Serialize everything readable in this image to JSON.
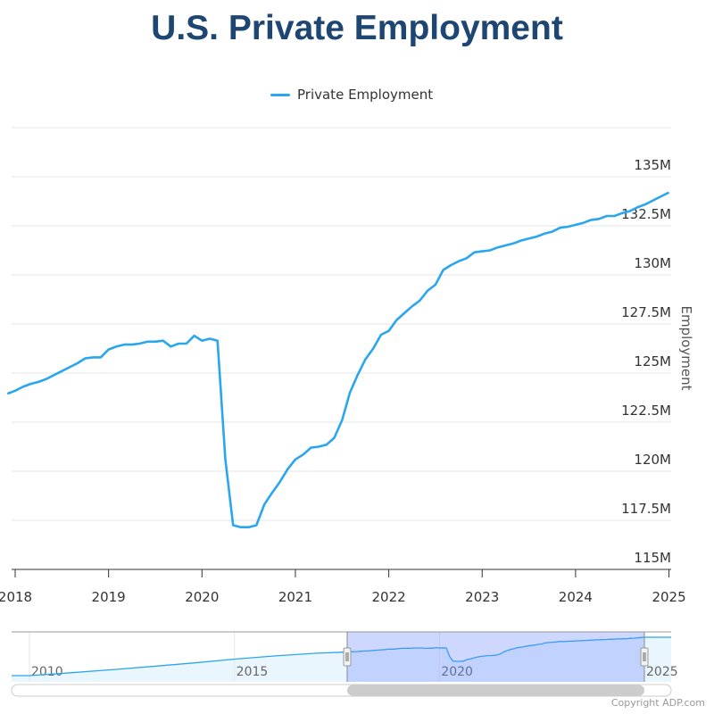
{
  "title": "U.S. Private Employment",
  "copyright": "Copyright ADP.com",
  "colors": {
    "line": "#2aa6ee",
    "title": "#1d4673",
    "navigator_mask": "#6685ff"
  },
  "chart_data": {
    "type": "line",
    "title": "U.S. Private Employment",
    "legend": {
      "entries": [
        "Private Employment"
      ],
      "placement": "top-center"
    },
    "ylabel": "Employment",
    "xlabel": "",
    "ylim": [
      115,
      137.5
    ],
    "yticks": [
      "115M",
      "117.5M",
      "120M",
      "122.5M",
      "125M",
      "127.5M",
      "130M",
      "132.5M",
      "135M"
    ],
    "ytick_values": [
      115,
      117.5,
      120,
      122.5,
      125,
      127.5,
      130,
      132.5,
      135
    ],
    "xticks": [
      "2018",
      "2019",
      "2020",
      "2021",
      "2022",
      "2023",
      "2024",
      "2025"
    ],
    "grid": true,
    "start": "2017-12",
    "frequency": "monthly",
    "series": [
      {
        "name": "Private Employment",
        "unit": "millions",
        "values": [
          123.95,
          124.1,
          124.3,
          124.45,
          124.55,
          124.7,
          124.9,
          125.1,
          125.3,
          125.5,
          125.75,
          125.8,
          125.8,
          126.2,
          126.35,
          126.45,
          126.45,
          126.5,
          126.6,
          126.6,
          126.65,
          126.35,
          126.5,
          126.5,
          126.9,
          126.65,
          126.75,
          126.65,
          120.6,
          117.25,
          117.15,
          117.15,
          117.25,
          118.3,
          118.9,
          119.45,
          120.1,
          120.6,
          120.85,
          121.2,
          121.25,
          121.35,
          121.7,
          122.6,
          124.0,
          124.9,
          125.7,
          126.25,
          126.95,
          127.15,
          127.7,
          128.05,
          128.4,
          128.7,
          129.2,
          129.5,
          130.25,
          130.5,
          130.7,
          130.85,
          131.15,
          131.2,
          131.25,
          131.4,
          131.5,
          131.6,
          131.75,
          131.85,
          131.95,
          132.1,
          132.2,
          132.4,
          132.45,
          132.55,
          132.65,
          132.8,
          132.85,
          133.0,
          133.0,
          133.15,
          133.25,
          133.45,
          133.6,
          133.8,
          134.0,
          134.2
        ]
      }
    ],
    "navigator": {
      "xticks": [
        "2010",
        "2015",
        "2020",
        "2025"
      ],
      "selected_range": [
        "2017-12",
        "2025-01"
      ],
      "annual_history": {
        "years": [
          2010,
          2011,
          2012,
          2013,
          2014,
          2015,
          2016,
          2017
        ],
        "values": [
          107.0,
          109.0,
          111.2,
          113.5,
          116.0,
          118.7,
          121.0,
          122.9
        ]
      }
    }
  }
}
